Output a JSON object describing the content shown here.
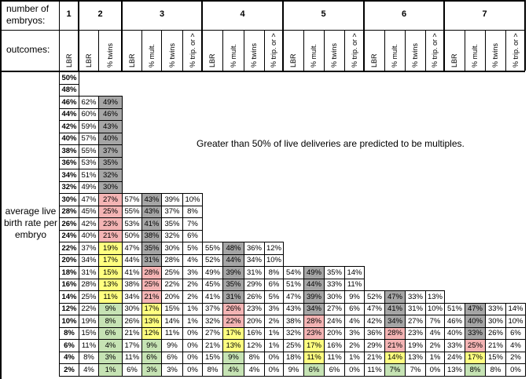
{
  "header": {
    "number_label": "number of embryos:",
    "outcomes_label": "outcomes:",
    "groups": [
      {
        "number": "1",
        "outcomes": [
          "LBR"
        ]
      },
      {
        "number": "2",
        "outcomes": [
          "LBR",
          "% twins"
        ]
      },
      {
        "number": "3",
        "outcomes": [
          "LBR",
          "% mult.",
          "% twins",
          "% trip. or >"
        ]
      },
      {
        "number": "4",
        "outcomes": [
          "LBR",
          "% mult.",
          "% twins",
          "% trip. or >"
        ]
      },
      {
        "number": "5",
        "outcomes": [
          "LBR",
          "% mult.",
          "% twins",
          "% trip. or >"
        ]
      },
      {
        "number": "6",
        "outcomes": [
          "LBR",
          "% mult.",
          "% twins",
          "% trip. or >"
        ]
      },
      {
        "number": "7",
        "outcomes": [
          "LBR",
          "% mult.",
          "% twins",
          "% trip. or >"
        ]
      }
    ]
  },
  "side_label": "average live birth rate per embryo",
  "note": "Greater than 50% of live deliveries are predicted to be multiples.",
  "shade_colors": {
    "k": "#a6a6a6",
    "r": "#f4b4b4",
    "y": "#ffff80",
    "n": "#c6e3b4"
  },
  "rows": [
    {
      "rate": "50%",
      "groups": [],
      "shades": []
    },
    {
      "rate": "48%",
      "groups": [],
      "shades": []
    },
    {
      "rate": "46%",
      "groups": [
        [
          "62%",
          "49%"
        ]
      ],
      "shades": [
        "k"
      ]
    },
    {
      "rate": "44%",
      "groups": [
        [
          "60%",
          "46%"
        ]
      ],
      "shades": [
        "k"
      ]
    },
    {
      "rate": "42%",
      "groups": [
        [
          "59%",
          "43%"
        ]
      ],
      "shades": [
        "k"
      ]
    },
    {
      "rate": "40%",
      "groups": [
        [
          "57%",
          "40%"
        ]
      ],
      "shades": [
        "k"
      ]
    },
    {
      "rate": "38%",
      "groups": [
        [
          "55%",
          "37%"
        ]
      ],
      "shades": [
        "k"
      ]
    },
    {
      "rate": "36%",
      "groups": [
        [
          "53%",
          "35%"
        ]
      ],
      "shades": [
        "k"
      ]
    },
    {
      "rate": "34%",
      "groups": [
        [
          "51%",
          "32%"
        ]
      ],
      "shades": [
        "k"
      ]
    },
    {
      "rate": "32%",
      "groups": [
        [
          "49%",
          "30%"
        ]
      ],
      "shades": [
        "k"
      ]
    },
    {
      "rate": "30%",
      "groups": [
        [
          "47%",
          "27%"
        ],
        [
          "57%",
          "43%",
          "39%",
          "10%"
        ]
      ],
      "shades": [
        "r",
        "k"
      ]
    },
    {
      "rate": "28%",
      "groups": [
        [
          "45%",
          "25%"
        ],
        [
          "55%",
          "43%",
          "37%",
          "8%"
        ]
      ],
      "shades": [
        "r",
        "k"
      ]
    },
    {
      "rate": "26%",
      "groups": [
        [
          "42%",
          "23%"
        ],
        [
          "53%",
          "41%",
          "35%",
          "7%"
        ]
      ],
      "shades": [
        "r",
        "k"
      ]
    },
    {
      "rate": "24%",
      "groups": [
        [
          "40%",
          "21%"
        ],
        [
          "50%",
          "38%",
          "32%",
          "6%"
        ]
      ],
      "shades": [
        "r",
        "k"
      ]
    },
    {
      "rate": "22%",
      "groups": [
        [
          "37%",
          "19%"
        ],
        [
          "47%",
          "35%",
          "30%",
          "5%"
        ],
        [
          "55%",
          "48%",
          "36%",
          "12%"
        ]
      ],
      "shades": [
        "y",
        "k",
        "k"
      ]
    },
    {
      "rate": "20%",
      "groups": [
        [
          "34%",
          "17%"
        ],
        [
          "44%",
          "31%",
          "28%",
          "4%"
        ],
        [
          "52%",
          "44%",
          "34%",
          "10%"
        ]
      ],
      "shades": [
        "y",
        "k",
        "k"
      ]
    },
    {
      "rate": "18%",
      "groups": [
        [
          "31%",
          "15%"
        ],
        [
          "41%",
          "28%",
          "25%",
          "3%"
        ],
        [
          "49%",
          "39%",
          "31%",
          "8%"
        ],
        [
          "54%",
          "49%",
          "35%",
          "14%"
        ]
      ],
      "shades": [
        "y",
        "r",
        "k",
        "k"
      ]
    },
    {
      "rate": "16%",
      "groups": [
        [
          "28%",
          "13%"
        ],
        [
          "38%",
          "25%",
          "22%",
          "2%"
        ],
        [
          "45%",
          "35%",
          "29%",
          "6%"
        ],
        [
          "51%",
          "44%",
          "33%",
          "11%"
        ]
      ],
      "shades": [
        "y",
        "r",
        "k",
        "k"
      ]
    },
    {
      "rate": "14%",
      "groups": [
        [
          "25%",
          "11%"
        ],
        [
          "34%",
          "21%",
          "20%",
          "2%"
        ],
        [
          "41%",
          "31%",
          "26%",
          "5%"
        ],
        [
          "47%",
          "39%",
          "30%",
          "9%"
        ],
        [
          "52%",
          "47%",
          "33%",
          "13%"
        ]
      ],
      "shades": [
        "y",
        "r",
        "k",
        "k",
        "k"
      ]
    },
    {
      "rate": "12%",
      "groups": [
        [
          "22%",
          "9%"
        ],
        [
          "30%",
          "17%",
          "15%",
          "1%"
        ],
        [
          "37%",
          "26%",
          "23%",
          "3%"
        ],
        [
          "43%",
          "34%",
          "27%",
          "6%"
        ],
        [
          "47%",
          "41%",
          "31%",
          "10%"
        ],
        [
          "51%",
          "47%",
          "33%",
          "14%"
        ]
      ],
      "shades": [
        "n",
        "y",
        "r",
        "k",
        "k",
        "k"
      ]
    },
    {
      "rate": "10%",
      "groups": [
        [
          "19%",
          "8%"
        ],
        [
          "26%",
          "13%",
          "14%",
          "1%"
        ],
        [
          "32%",
          "22%",
          "20%",
          "2%"
        ],
        [
          "38%",
          "28%",
          "24%",
          "4%"
        ],
        [
          "42%",
          "34%",
          "27%",
          "7%"
        ],
        [
          "46%",
          "40%",
          "30%",
          "10%"
        ]
      ],
      "shades": [
        "n",
        "y",
        "r",
        "r",
        "k",
        "k"
      ]
    },
    {
      "rate": "8%",
      "groups": [
        [
          "15%",
          "6%"
        ],
        [
          "21%",
          "12%",
          "11%",
          "0%"
        ],
        [
          "27%",
          "17%",
          "16%",
          "1%"
        ],
        [
          "32%",
          "23%",
          "20%",
          "3%"
        ],
        [
          "36%",
          "28%",
          "23%",
          "4%"
        ],
        [
          "40%",
          "33%",
          "26%",
          "6%"
        ]
      ],
      "shades": [
        "n",
        "y",
        "y",
        "r",
        "r",
        "k"
      ]
    },
    {
      "rate": "6%",
      "groups": [
        [
          "11%",
          "4%"
        ],
        [
          "17%",
          "9%",
          "9%",
          "0%"
        ],
        [
          "21%",
          "13%",
          "12%",
          "1%"
        ],
        [
          "25%",
          "17%",
          "16%",
          "2%"
        ],
        [
          "29%",
          "21%",
          "19%",
          "2%"
        ],
        [
          "33%",
          "25%",
          "21%",
          "4%"
        ]
      ],
      "shades": [
        "n",
        "n",
        "y",
        "y",
        "r",
        "r"
      ]
    },
    {
      "rate": "4%",
      "groups": [
        [
          "8%",
          "3%"
        ],
        [
          "11%",
          "6%",
          "6%",
          "0%"
        ],
        [
          "15%",
          "9%",
          "8%",
          "0%"
        ],
        [
          "18%",
          "11%",
          "11%",
          "1%"
        ],
        [
          "21%",
          "14%",
          "13%",
          "1%"
        ],
        [
          "24%",
          "17%",
          "15%",
          "2%"
        ]
      ],
      "shades": [
        "n",
        "n",
        "n",
        "y",
        "y",
        "y"
      ]
    },
    {
      "rate": "2%",
      "groups": [
        [
          "4%",
          "1%"
        ],
        [
          "6%",
          "3%",
          "3%",
          "0%"
        ],
        [
          "8%",
          "4%",
          "4%",
          "0%"
        ],
        [
          "9%",
          "6%",
          "6%",
          "0%"
        ],
        [
          "11%",
          "7%",
          "7%",
          "0%"
        ],
        [
          "13%",
          "8%",
          "8%",
          "0%"
        ]
      ],
      "shades": [
        "n",
        "n",
        "n",
        "n",
        "n",
        "n"
      ]
    }
  ]
}
